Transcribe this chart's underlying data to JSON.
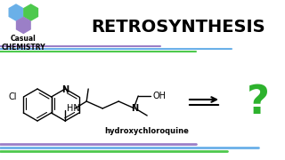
{
  "bg_color": "#ffffff",
  "title_text": "RETROSYNTHESIS",
  "title_color": "#000000",
  "title_fontsize": 14,
  "title_fontweight": "bold",
  "logo_colors": {
    "blue": "#6ab0e8",
    "green": "#4dc94d",
    "purple": "#9b7fc7"
  },
  "casual_text": "Casual\nCHEMISTRY",
  "casual_fontsize": 5.5,
  "sep_colors": [
    "#9b7fc7",
    "#6ab0e8",
    "#4dc94d"
  ],
  "molecule_label": "hydroxychloroquine",
  "label_fontsize": 6,
  "question_color": "#2db22d",
  "bottom_sep_colors": [
    "#9b7fc7",
    "#6ab0e8",
    "#4dc94d"
  ]
}
